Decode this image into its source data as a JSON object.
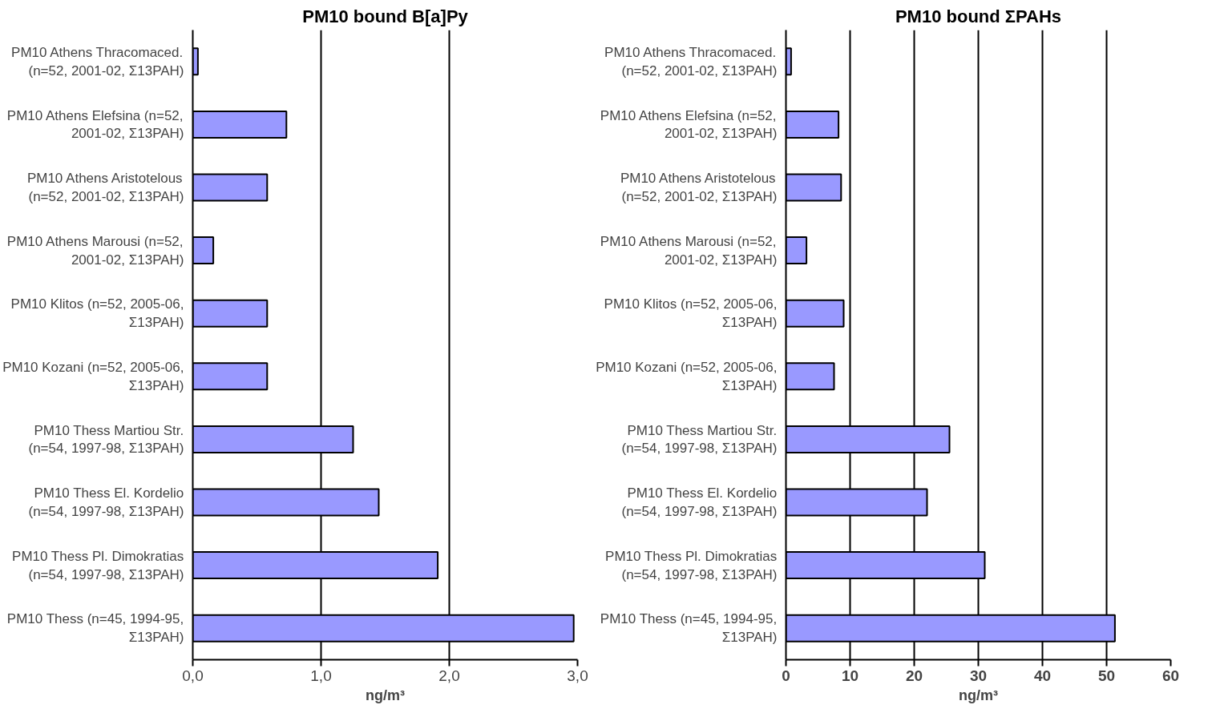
{
  "chart_data": [
    {
      "type": "bar",
      "orientation": "horizontal",
      "title": "PM10 bound B[a]Py",
      "xlabel": "ng/m³",
      "categories": [
        "PM10 Athens Thracomaced.\n(n=52, 2001-02, Σ13PAH)",
        "PM10 Athens Elefsina (n=52,\n2001-02, Σ13PAH)",
        "PM10 Athens Aristotelous\n(n=52, 2001-02, Σ13PAH)",
        "PM10 Athens Marousi (n=52,\n2001-02, Σ13PAH)",
        "PM10 Klitos (n=52, 2005-06,\nΣ13PAH)",
        "PM10 Kozani (n=52, 2005-06,\nΣ13PAH)",
        "PM10 Thess Martiou Str.\n(n=54, 1997-98, Σ13PAH)",
        "PM10 Thess El. Kordelio\n(n=54, 1997-98, Σ13PAH)",
        "PM10 Thess Pl. Dimokratias\n(n=54, 1997-98, Σ13PAH)",
        "PM10 Thess (n=45, 1994-95,\nΣ13PAH)"
      ],
      "values": [
        0.04,
        0.73,
        0.58,
        0.16,
        0.58,
        0.58,
        1.25,
        1.45,
        1.91,
        2.97
      ],
      "color": "#9999ff",
      "xlim": [
        0,
        3
      ],
      "xticks": [
        {
          "value": 0,
          "label": "0,0"
        },
        {
          "value": 1,
          "label": "1,0"
        },
        {
          "value": 2,
          "label": "2,0"
        },
        {
          "value": 3,
          "label": "3,0"
        }
      ],
      "grid": "x"
    },
    {
      "type": "bar",
      "orientation": "horizontal",
      "title": "PM10 bound ΣPAHs",
      "xlabel": "ng/m³",
      "categories": [
        "PM10 Athens Thracomaced.\n(n=52, 2001-02, Σ13PAH)",
        "PM10 Athens Elefsina (n=52,\n2001-02, Σ13PAH)",
        "PM10 Athens Aristotelous\n(n=52, 2001-02, Σ13PAH)",
        "PM10 Athens Marousi (n=52,\n2001-02, Σ13PAH)",
        "PM10 Klitos (n=52, 2005-06,\nΣ13PAH)",
        "PM10 Kozani (n=52, 2005-06,\nΣ13PAH)",
        "PM10 Thess Martiou Str.\n(n=54, 1997-98, Σ13PAH)",
        "PM10 Thess El. Kordelio\n(n=54, 1997-98, Σ13PAH)",
        "PM10 Thess Pl. Dimokratias\n(n=54, 1997-98, Σ13PAH)",
        "PM10 Thess (n=45, 1994-95,\nΣ13PAH)"
      ],
      "values": [
        0.8,
        8.2,
        8.6,
        3.2,
        9.0,
        7.5,
        25.5,
        22.0,
        31.0,
        51.3
      ],
      "color": "#9999ff",
      "xlim": [
        0,
        60
      ],
      "xticks": [
        0,
        10,
        20,
        30,
        40,
        50,
        60
      ],
      "grid": "x"
    }
  ]
}
